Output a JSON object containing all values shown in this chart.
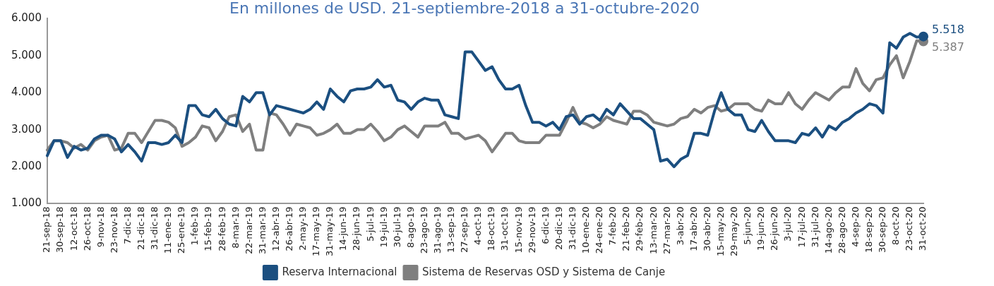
{
  "chart_data": {
    "type": "line",
    "subtitle": "En millones de USD. 21-septiembre-2018 a 31-octubre-2020",
    "categories": [
      "21-sep-18",
      null,
      "30-sep-18",
      null,
      "12-oct-18",
      null,
      "26-oct-18",
      null,
      "9-nov-18",
      null,
      "23-nov-18",
      null,
      "7-dic-18",
      null,
      "21-dic-18",
      null,
      "31-dic-18",
      null,
      "11-ene-19",
      null,
      "25-ene-19",
      null,
      "1-feb-19",
      null,
      "15-feb-19",
      null,
      "28-feb-19",
      null,
      "8-mar-19",
      null,
      "22-mar-19",
      null,
      "31-mar-19",
      null,
      "12-abr-19",
      null,
      "26-abr-19",
      null,
      "2-may-19",
      null,
      "17-may-19",
      null,
      "31-may-19",
      null,
      "14-jun-19",
      null,
      "28-jun-19",
      null,
      "5-jul-19",
      null,
      "19-jul-19",
      null,
      "30-jul-19",
      null,
      "8-ago-19",
      null,
      "23-ago-19",
      null,
      "31-ago-19",
      null,
      "13-sep-19",
      null,
      "27-sep-19",
      null,
      "4-oct-19",
      null,
      "18-oct-19",
      null,
      "31-oct-19",
      null,
      "15-nov-19",
      null,
      "29-nov-19",
      null,
      "6-dic-19",
      null,
      "20-dic-19",
      null,
      "31-dic-19",
      null,
      "10-ene-20",
      null,
      "24-ene-20",
      null,
      "7-feb-20",
      null,
      "21-feb-20",
      null,
      "29-feb-20",
      null,
      "13-mar-20",
      null,
      "27-mar-20",
      null,
      "3-abr-20",
      null,
      "17-abr-20",
      null,
      "30-abr-20",
      null,
      "15-may-20",
      null,
      "29-may-20",
      null,
      "5-jun-20",
      null,
      "19-jun-20",
      null,
      "26-jun-20",
      null,
      "3-jul-20",
      null,
      "17-jul-20",
      null,
      "31-jul-20",
      null,
      "14-ago-20",
      null,
      "28-ago-20",
      null,
      "4-sep-20",
      null,
      "18-sep-20",
      null,
      "30-sep-20",
      null,
      "8-oct-20",
      null,
      "23-oct-20",
      null,
      "31-oct-20"
    ],
    "series": [
      {
        "name": "Reserva Internacional",
        "color": "#1b4f80",
        "values": [
          2300,
          2700,
          2700,
          2250,
          2550,
          2450,
          2500,
          2750,
          2850,
          2850,
          2750,
          2400,
          2600,
          2400,
          2150,
          2650,
          2650,
          2600,
          2650,
          2850,
          2650,
          3650,
          3650,
          3400,
          3350,
          3550,
          3300,
          3150,
          3100,
          3900,
          3750,
          4000,
          4000,
          3400,
          3650,
          3600,
          3550,
          3500,
          3450,
          3550,
          3750,
          3550,
          4100,
          3900,
          3750,
          4050,
          4100,
          4100,
          4150,
          4350,
          4150,
          4200,
          3800,
          3750,
          3550,
          3750,
          3850,
          3800,
          3800,
          3400,
          3350,
          3300,
          5100,
          5100,
          4850,
          4600,
          4700,
          4350,
          4100,
          4100,
          4200,
          3650,
          3200,
          3200,
          3100,
          3200,
          3000,
          3350,
          3400,
          3150,
          3350,
          3400,
          3250,
          3550,
          3400,
          3700,
          3500,
          3300,
          3300,
          3150,
          3000,
          2150,
          2200,
          2000,
          2200,
          2300,
          2900,
          2900,
          2850,
          3500,
          4000,
          3550,
          3400,
          3400,
          3000,
          2950,
          3250,
          2950,
          2700,
          2700,
          2700,
          2650,
          2900,
          2850,
          3050,
          2800,
          3100,
          3000,
          3200,
          3300,
          3450,
          3550,
          3700,
          3650,
          3450,
          5350,
          5200,
          5500,
          5600,
          5500,
          5518
        ],
        "value_labels": [
          null,
          null,
          null,
          null,
          null,
          null,
          null,
          null,
          null,
          null,
          null,
          null,
          null,
          null,
          null,
          null,
          null,
          null,
          null,
          null,
          null,
          null,
          null,
          null,
          null,
          null,
          null,
          null,
          null,
          null,
          null,
          null,
          null,
          null,
          null,
          null,
          null,
          null,
          null,
          null,
          null,
          null,
          null,
          null,
          null,
          null,
          null,
          null,
          null,
          null,
          null,
          null,
          null,
          null,
          null,
          null,
          null,
          null,
          null,
          null,
          null,
          null,
          null,
          null,
          null,
          null,
          null,
          null,
          null,
          null,
          null,
          null,
          null,
          null,
          null,
          null,
          null,
          null,
          null,
          null,
          null,
          null,
          null,
          null,
          null,
          null,
          null,
          null,
          null,
          null,
          null,
          null,
          null,
          null,
          null,
          null,
          null,
          null,
          null,
          null,
          null,
          null,
          null,
          null,
          null,
          null,
          null,
          null,
          null,
          null,
          null,
          null,
          null,
          null,
          null,
          null,
          null,
          null,
          null,
          null,
          null,
          null,
          null,
          null,
          null,
          null,
          null,
          null,
          null,
          null,
          "5.518"
        ]
      },
      {
        "name": "Sistema de Reservas OSD y Sistema de Canje",
        "color": "#7f7f7f",
        "values": [
          2450,
          2700,
          2700,
          2650,
          2500,
          2600,
          2450,
          2700,
          2800,
          2850,
          2450,
          2500,
          2900,
          2900,
          2650,
          2950,
          3250,
          3250,
          3200,
          3050,
          2550,
          2650,
          2800,
          3100,
          3050,
          2700,
          2950,
          3350,
          3400,
          2950,
          3150,
          2450,
          2450,
          3450,
          3400,
          3150,
          2850,
          3150,
          3100,
          3050,
          2850,
          2900,
          3000,
          3150,
          2900,
          2900,
          3000,
          3000,
          3150,
          2950,
          2700,
          2800,
          3000,
          3100,
          2950,
          2800,
          3100,
          3100,
          3100,
          3200,
          2900,
          2900,
          2750,
          2800,
          2850,
          2700,
          2400,
          2650,
          2900,
          2900,
          2700,
          2650,
          2650,
          2650,
          2850,
          2850,
          2850,
          3200,
          3600,
          3200,
          3150,
          3050,
          3150,
          3350,
          3250,
          3200,
          3150,
          3500,
          3500,
          3400,
          3200,
          3150,
          3100,
          3150,
          3300,
          3350,
          3550,
          3450,
          3600,
          3650,
          3500,
          3550,
          3700,
          3700,
          3700,
          3550,
          3500,
          3800,
          3700,
          3700,
          4000,
          3700,
          3550,
          3800,
          4000,
          3900,
          3800,
          4000,
          4150,
          4150,
          4650,
          4250,
          4050,
          4350,
          4400,
          4750,
          5000,
          4400,
          4850,
          5400,
          5387
        ],
        "value_labels": [
          null,
          null,
          null,
          null,
          null,
          null,
          null,
          null,
          null,
          null,
          null,
          null,
          null,
          null,
          null,
          null,
          null,
          null,
          null,
          null,
          null,
          null,
          null,
          null,
          null,
          null,
          null,
          null,
          null,
          null,
          null,
          null,
          null,
          null,
          null,
          null,
          null,
          null,
          null,
          null,
          null,
          null,
          null,
          null,
          null,
          null,
          null,
          null,
          null,
          null,
          null,
          null,
          null,
          null,
          null,
          null,
          null,
          null,
          null,
          null,
          null,
          null,
          null,
          null,
          null,
          null,
          null,
          null,
          null,
          null,
          null,
          null,
          null,
          null,
          null,
          null,
          null,
          null,
          null,
          null,
          null,
          null,
          null,
          null,
          null,
          null,
          null,
          null,
          null,
          null,
          null,
          null,
          null,
          null,
          null,
          null,
          null,
          null,
          null,
          null,
          null,
          null,
          null,
          null,
          null,
          null,
          null,
          null,
          null,
          null,
          null,
          null,
          null,
          null,
          null,
          null,
          null,
          null,
          null,
          null,
          null,
          null,
          null,
          null,
          null,
          null,
          null,
          null,
          null,
          null,
          "5.387"
        ]
      }
    ],
    "ylim": [
      1000,
      6000
    ],
    "yticks": [
      {
        "value": 1000,
        "label": "1.000"
      },
      {
        "value": 2000,
        "label": "2.000"
      },
      {
        "value": 3000,
        "label": "3.000"
      },
      {
        "value": 4000,
        "label": "4.000"
      },
      {
        "value": 5000,
        "label": "5.000"
      },
      {
        "value": 6000,
        "label": "6.000"
      }
    ],
    "grid": false,
    "legend": "bottom",
    "marker": "none",
    "line_style": "solid"
  }
}
